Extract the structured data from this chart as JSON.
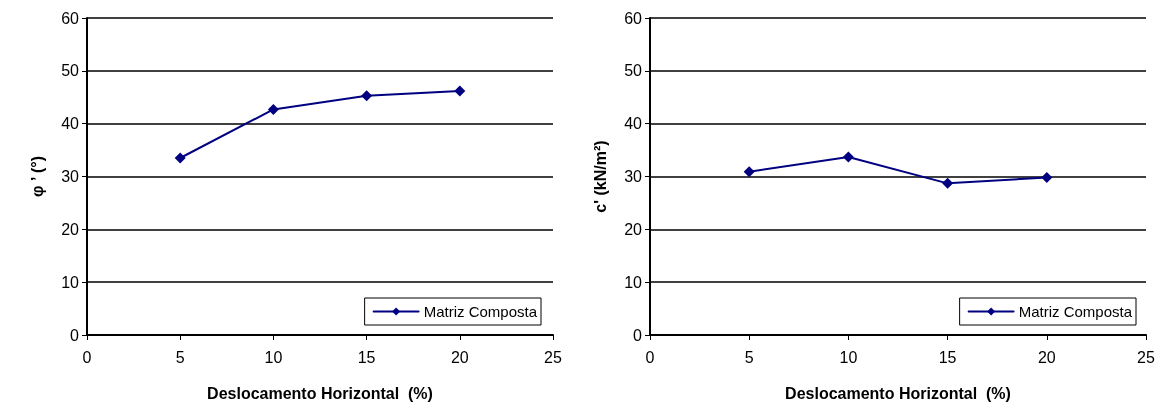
{
  "chart_data": [
    {
      "type": "line",
      "xlabel": "Deslocamento Horizontal  (%)",
      "ylabel": "φ ’ (°)",
      "x": [
        5,
        10,
        15,
        20
      ],
      "series": [
        {
          "name": "Matriz Composta",
          "color": "#000080",
          "values": [
            33.5,
            42.7,
            45.3,
            46.2
          ]
        }
      ],
      "xlim": [
        0,
        25
      ],
      "xticks": [
        0,
        5,
        10,
        15,
        20,
        25
      ],
      "ylim": [
        0,
        60
      ],
      "yticks": [
        0,
        10,
        20,
        30,
        40,
        50,
        60
      ],
      "grid": "y",
      "legend": "bottom right",
      "marker": "diamond",
      "line_style": "solid"
    },
    {
      "type": "line",
      "xlabel": "Deslocamento Horizontal  (%)",
      "ylabel": "c' (kN/m²)",
      "x": [
        5,
        10,
        15,
        20
      ],
      "series": [
        {
          "name": "Matriz Composta",
          "color": "#000080",
          "values": [
            30.9,
            33.7,
            28.7,
            29.8
          ]
        }
      ],
      "xlim": [
        0,
        25
      ],
      "xticks": [
        0,
        5,
        10,
        15,
        20,
        25
      ],
      "ylim": [
        0,
        60
      ],
      "yticks": [
        0,
        10,
        20,
        30,
        40,
        50,
        60
      ],
      "grid": "y",
      "legend": "bottom right",
      "marker": "diamond",
      "line_style": "solid"
    }
  ]
}
